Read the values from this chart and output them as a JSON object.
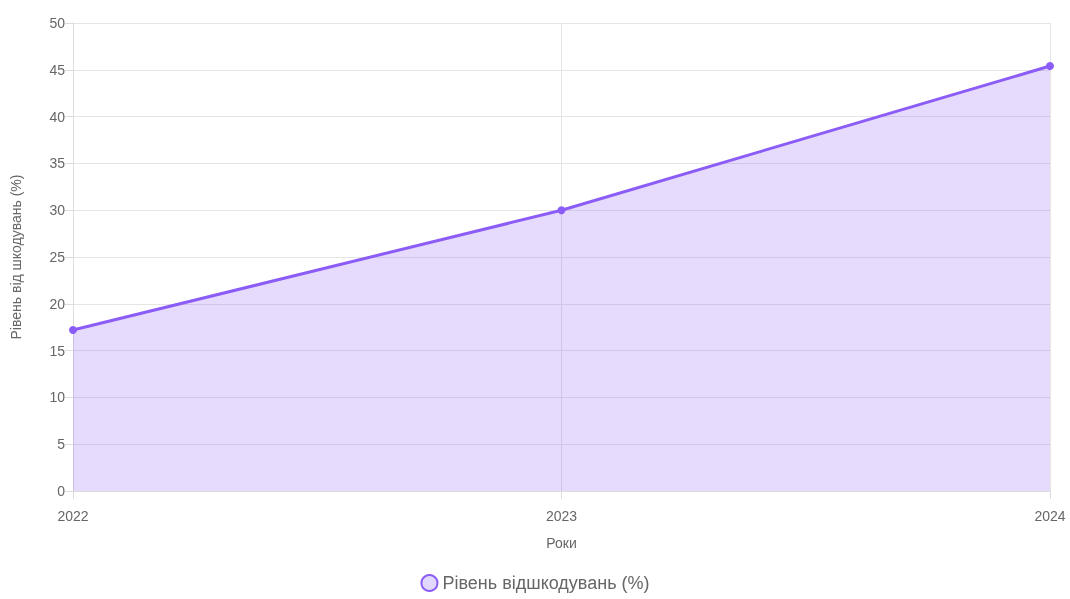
{
  "chart_data": {
    "type": "area",
    "categories": [
      "2022",
      "2023",
      "2024"
    ],
    "series": [
      {
        "name": "Рівень відшкодувань (%)",
        "color": "#8b5cf6",
        "values": [
          17.2,
          30,
          45.4
        ]
      }
    ],
    "xlabel": "Роки",
    "ylabel": "Рівень від шкодувань (%)",
    "ylim": [
      0,
      50
    ],
    "yticks": [
      0,
      5,
      10,
      15,
      20,
      25,
      30,
      35,
      40,
      45,
      50
    ],
    "grid": true,
    "legend": "bottom",
    "marker": "circle"
  }
}
